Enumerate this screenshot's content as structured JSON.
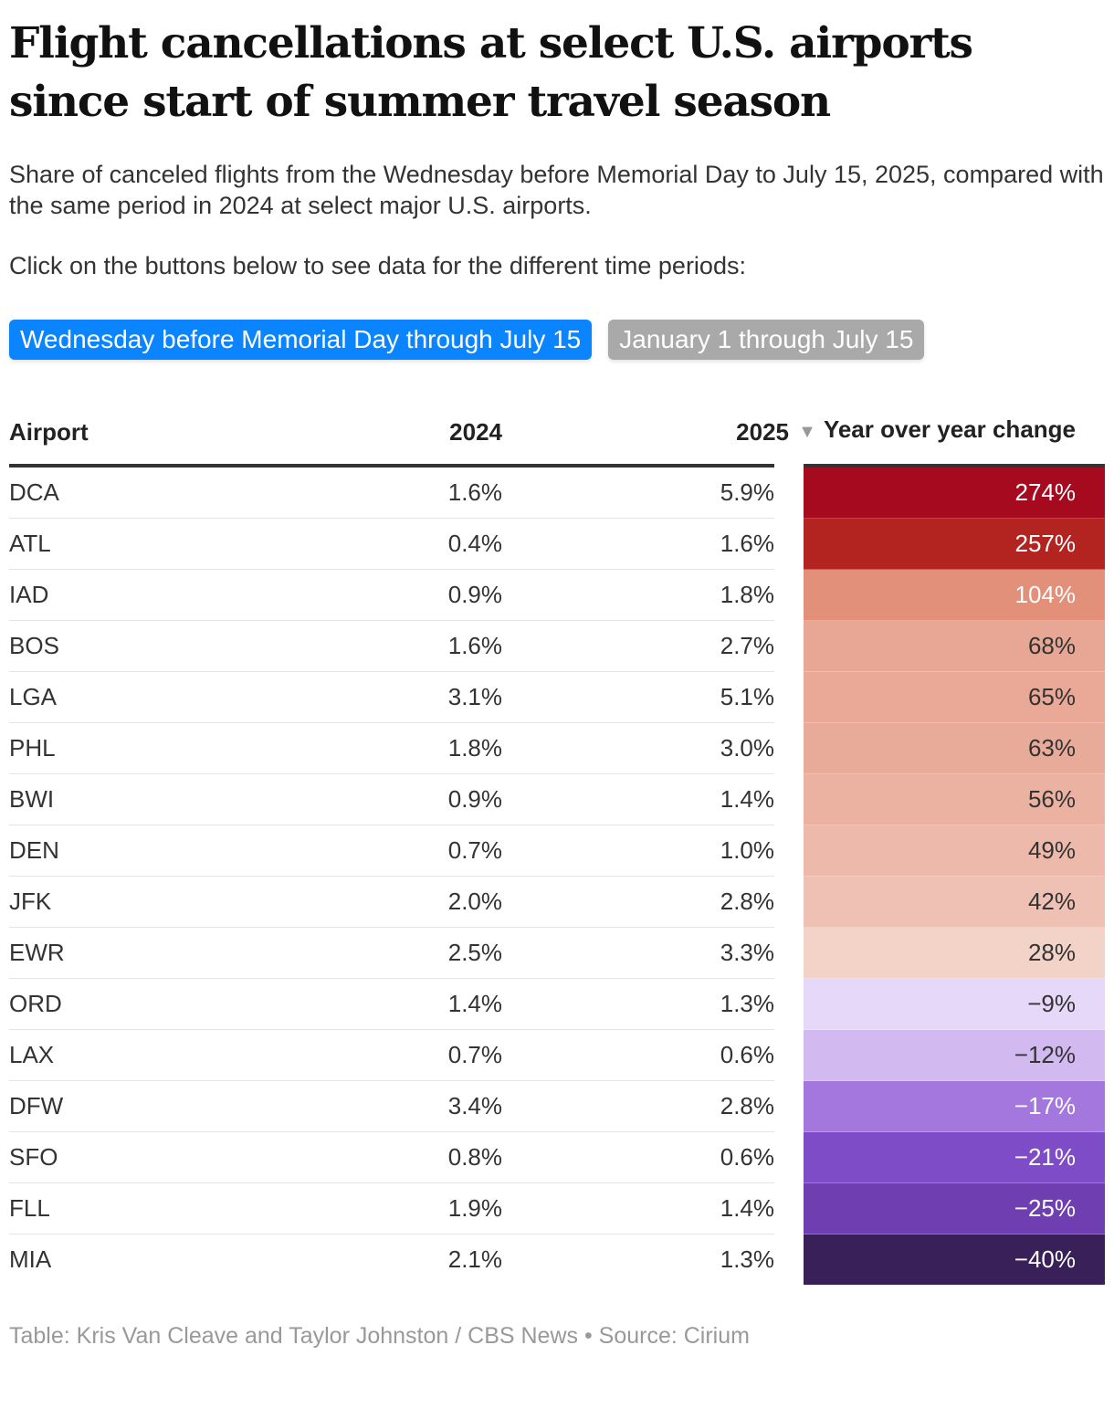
{
  "title": "Flight cancellations at select U.S. airports since start of summer travel season",
  "subtitle": "Share of canceled flights from the Wednesday before Memorial Day to July 15, 2025, compared with the same period in 2024 at select major U.S. airports.",
  "instructions": "Click on the buttons below to see data for the different time periods:",
  "buttons": [
    {
      "label": "Wednesday before Memorial Day through July 15",
      "active": true
    },
    {
      "label": "January 1 through July 15",
      "active": false
    }
  ],
  "footer": "Table: Kris Van Cleave and Taylor Johnston / CBS News • Source: Cirium",
  "colors": {
    "active_button": "#0a84ff",
    "inactive_button": "#a9a9a9"
  },
  "chart_data": {
    "type": "table",
    "columns": [
      "Airport",
      "2024",
      "2025",
      "Year over year change"
    ],
    "sort_indicator": "descending",
    "rows": [
      {
        "airport": "DCA",
        "y2024": "1.6%",
        "y2025": "5.9%",
        "change": "274%",
        "color": "#a50a1e",
        "text_color": "#ffffff"
      },
      {
        "airport": "ATL",
        "y2024": "0.4%",
        "y2025": "1.6%",
        "change": "257%",
        "color": "#b32420",
        "text_color": "#ffffff"
      },
      {
        "airport": "IAD",
        "y2024": "0.9%",
        "y2025": "1.8%",
        "change": "104%",
        "color": "#e2907a",
        "text_color": "#ffffff"
      },
      {
        "airport": "BOS",
        "y2024": "1.6%",
        "y2025": "2.7%",
        "change": "68%",
        "color": "#e8a795",
        "text_color": "#333333"
      },
      {
        "airport": "LGA",
        "y2024": "3.1%",
        "y2025": "5.1%",
        "change": "65%",
        "color": "#e9a996",
        "text_color": "#333333"
      },
      {
        "airport": "PHL",
        "y2024": "1.8%",
        "y2025": "3.0%",
        "change": "63%",
        "color": "#e9ab99",
        "text_color": "#333333"
      },
      {
        "airport": "BWI",
        "y2024": "0.9%",
        "y2025": "1.4%",
        "change": "56%",
        "color": "#ebb2a2",
        "text_color": "#333333"
      },
      {
        "airport": "DEN",
        "y2024": "0.7%",
        "y2025": "1.0%",
        "change": "49%",
        "color": "#edb9aa",
        "text_color": "#333333"
      },
      {
        "airport": "JFK",
        "y2024": "2.0%",
        "y2025": "2.8%",
        "change": "42%",
        "color": "#efc1b4",
        "text_color": "#333333"
      },
      {
        "airport": "EWR",
        "y2024": "2.5%",
        "y2025": "3.3%",
        "change": "28%",
        "color": "#f3d2c8",
        "text_color": "#333333"
      },
      {
        "airport": "ORD",
        "y2024": "1.4%",
        "y2025": "1.3%",
        "change": "−9%",
        "color": "#e6d8f9",
        "text_color": "#333333"
      },
      {
        "airport": "LAX",
        "y2024": "0.7%",
        "y2025": "0.6%",
        "change": "−12%",
        "color": "#d2b9f0",
        "text_color": "#333333"
      },
      {
        "airport": "DFW",
        "y2024": "3.4%",
        "y2025": "2.8%",
        "change": "−17%",
        "color": "#a477de",
        "text_color": "#ffffff"
      },
      {
        "airport": "SFO",
        "y2024": "0.8%",
        "y2025": "0.6%",
        "change": "−21%",
        "color": "#7f4cc8",
        "text_color": "#ffffff"
      },
      {
        "airport": "FLL",
        "y2024": "1.9%",
        "y2025": "1.4%",
        "change": "−25%",
        "color": "#6f3fb2",
        "text_color": "#ffffff"
      },
      {
        "airport": "MIA",
        "y2024": "2.1%",
        "y2025": "1.3%",
        "change": "−40%",
        "color": "#3a2058",
        "text_color": "#ffffff"
      }
    ]
  }
}
